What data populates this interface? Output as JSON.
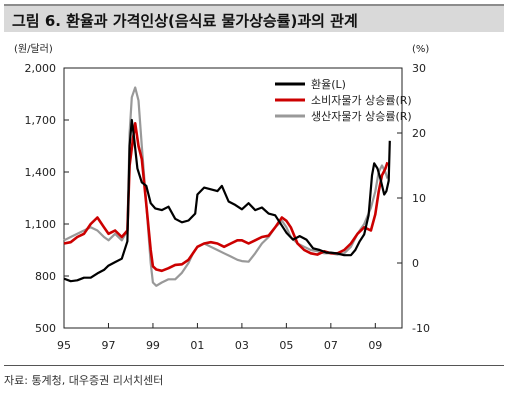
{
  "header": {
    "title": "그림 6. 환율과 가격인상(음식료 물가상승률)과의 관계"
  },
  "footer": {
    "source": "자료: 통계청, 대우증권 리서치센터"
  },
  "chart_data": {
    "type": "line",
    "title": "그림 6. 환율과 가격인상(음식료 물가상승률)과의 관계",
    "y_left_unit": "(원/달러)",
    "y_right_unit": "(%)",
    "ylim_left": [
      500,
      2000
    ],
    "ylim_right": [
      -10,
      30
    ],
    "xlim": [
      1995,
      2010.2
    ],
    "x_ticks": [
      {
        "value": 1995,
        "label": "95"
      },
      {
        "value": 1997,
        "label": "97"
      },
      {
        "value": 1999,
        "label": "99"
      },
      {
        "value": 2001,
        "label": "01"
      },
      {
        "value": 2003,
        "label": "03"
      },
      {
        "value": 2005,
        "label": "05"
      },
      {
        "value": 2007,
        "label": "07"
      },
      {
        "value": 2009,
        "label": "09"
      }
    ],
    "y_left_ticks": [
      "500",
      "800",
      "1,100",
      "1,400",
      "1,700",
      "2,000"
    ],
    "y_left_tick_values": [
      500,
      800,
      1100,
      1400,
      1700,
      2000
    ],
    "y_right_ticks": [
      "-10",
      "0",
      "10",
      "20",
      "30"
    ],
    "y_right_tick_values": [
      -10,
      0,
      10,
      20,
      30
    ],
    "legend_position": "top-right",
    "series": [
      {
        "name": "환율(L)",
        "axis": "left",
        "color": "#000000",
        "points": [
          [
            1995.0,
            785
          ],
          [
            1995.3,
            770
          ],
          [
            1995.6,
            775
          ],
          [
            1995.9,
            790
          ],
          [
            1996.2,
            790
          ],
          [
            1996.5,
            815
          ],
          [
            1996.8,
            835
          ],
          [
            1997.0,
            860
          ],
          [
            1997.3,
            880
          ],
          [
            1997.6,
            900
          ],
          [
            1997.85,
            1000
          ],
          [
            1997.95,
            1550
          ],
          [
            1998.05,
            1700
          ],
          [
            1998.15,
            1600
          ],
          [
            1998.3,
            1420
          ],
          [
            1998.5,
            1340
          ],
          [
            1998.7,
            1320
          ],
          [
            1998.9,
            1220
          ],
          [
            1999.1,
            1190
          ],
          [
            1999.4,
            1180
          ],
          [
            1999.7,
            1200
          ],
          [
            2000.0,
            1130
          ],
          [
            2000.3,
            1110
          ],
          [
            2000.6,
            1120
          ],
          [
            2000.9,
            1160
          ],
          [
            2001.0,
            1270
          ],
          [
            2001.3,
            1310
          ],
          [
            2001.6,
            1300
          ],
          [
            2001.9,
            1290
          ],
          [
            2002.1,
            1320
          ],
          [
            2002.4,
            1230
          ],
          [
            2002.7,
            1210
          ],
          [
            2003.0,
            1185
          ],
          [
            2003.3,
            1220
          ],
          [
            2003.6,
            1180
          ],
          [
            2003.9,
            1195
          ],
          [
            2004.2,
            1160
          ],
          [
            2004.5,
            1150
          ],
          [
            2004.8,
            1090
          ],
          [
            2005.0,
            1050
          ],
          [
            2005.3,
            1010
          ],
          [
            2005.6,
            1030
          ],
          [
            2005.9,
            1010
          ],
          [
            2006.2,
            960
          ],
          [
            2006.5,
            950
          ],
          [
            2006.8,
            935
          ],
          [
            2007.0,
            935
          ],
          [
            2007.3,
            930
          ],
          [
            2007.6,
            920
          ],
          [
            2007.9,
            920
          ],
          [
            2008.1,
            950
          ],
          [
            2008.3,
            1000
          ],
          [
            2008.5,
            1040
          ],
          [
            2008.7,
            1150
          ],
          [
            2008.85,
            1380
          ],
          [
            2008.95,
            1450
          ],
          [
            2009.1,
            1420
          ],
          [
            2009.25,
            1350
          ],
          [
            2009.4,
            1270
          ],
          [
            2009.5,
            1290
          ],
          [
            2009.6,
            1350
          ],
          [
            2009.65,
            1580
          ]
        ]
      },
      {
        "name": "소비자물가 상승률(R)",
        "axis": "right",
        "color": "#cc0000",
        "points": [
          [
            1995.0,
            3.0
          ],
          [
            1995.3,
            3.2
          ],
          [
            1995.6,
            4.0
          ],
          [
            1995.9,
            4.5
          ],
          [
            1996.2,
            6.0
          ],
          [
            1996.5,
            7.0
          ],
          [
            1996.8,
            5.5
          ],
          [
            1997.0,
            4.5
          ],
          [
            1997.3,
            5.0
          ],
          [
            1997.6,
            4.0
          ],
          [
            1997.85,
            5.0
          ],
          [
            1997.95,
            15.0
          ],
          [
            1998.1,
            19.0
          ],
          [
            1998.2,
            21.5
          ],
          [
            1998.35,
            18.0
          ],
          [
            1998.5,
            16.0
          ],
          [
            1998.7,
            9.0
          ],
          [
            1998.9,
            2.0
          ],
          [
            1999.0,
            -0.5
          ],
          [
            1999.15,
            -1.0
          ],
          [
            1999.4,
            -1.2
          ],
          [
            1999.7,
            -0.8
          ],
          [
            2000.0,
            -0.3
          ],
          [
            2000.3,
            -0.2
          ],
          [
            2000.6,
            0.5
          ],
          [
            2000.8,
            1.5
          ],
          [
            2001.0,
            2.5
          ],
          [
            2001.3,
            3.0
          ],
          [
            2001.6,
            3.2
          ],
          [
            2001.9,
            3.0
          ],
          [
            2002.2,
            2.5
          ],
          [
            2002.5,
            3.0
          ],
          [
            2002.8,
            3.5
          ],
          [
            2003.0,
            3.5
          ],
          [
            2003.3,
            3.0
          ],
          [
            2003.6,
            3.5
          ],
          [
            2003.9,
            4.0
          ],
          [
            2004.2,
            4.2
          ],
          [
            2004.5,
            5.5
          ],
          [
            2004.8,
            7.0
          ],
          [
            2005.0,
            6.5
          ],
          [
            2005.2,
            5.5
          ],
          [
            2005.5,
            3.0
          ],
          [
            2005.8,
            2.0
          ],
          [
            2006.1,
            1.5
          ],
          [
            2006.4,
            1.3
          ],
          [
            2006.7,
            1.8
          ],
          [
            2007.0,
            1.5
          ],
          [
            2007.3,
            1.5
          ],
          [
            2007.6,
            2.0
          ],
          [
            2007.9,
            3.0
          ],
          [
            2008.2,
            4.5
          ],
          [
            2008.5,
            5.5
          ],
          [
            2008.8,
            5.0
          ],
          [
            2009.0,
            7.5
          ],
          [
            2009.15,
            11.0
          ],
          [
            2009.3,
            13.5
          ],
          [
            2009.45,
            14.5
          ],
          [
            2009.55,
            15.5
          ]
        ]
      },
      {
        "name": "생산자물가 상승률(R)",
        "axis": "right",
        "color": "#999999",
        "points": [
          [
            1995.0,
            3.5
          ],
          [
            1995.3,
            4.0
          ],
          [
            1995.6,
            4.5
          ],
          [
            1995.9,
            5.0
          ],
          [
            1996.2,
            5.5
          ],
          [
            1996.5,
            5.0
          ],
          [
            1996.8,
            4.0
          ],
          [
            1997.0,
            3.5
          ],
          [
            1997.3,
            4.5
          ],
          [
            1997.6,
            3.5
          ],
          [
            1997.85,
            5.0
          ],
          [
            1997.95,
            20.0
          ],
          [
            1998.05,
            25.5
          ],
          [
            1998.2,
            27.0
          ],
          [
            1998.35,
            25.0
          ],
          [
            1998.5,
            18.0
          ],
          [
            1998.7,
            9.0
          ],
          [
            1998.9,
            0.0
          ],
          [
            1999.0,
            -3.0
          ],
          [
            1999.15,
            -3.5
          ],
          [
            1999.4,
            -3.0
          ],
          [
            1999.7,
            -2.5
          ],
          [
            2000.0,
            -2.5
          ],
          [
            2000.3,
            -1.5
          ],
          [
            2000.6,
            0.0
          ],
          [
            2000.8,
            1.5
          ],
          [
            2001.0,
            2.5
          ],
          [
            2001.3,
            3.0
          ],
          [
            2001.6,
            2.5
          ],
          [
            2001.9,
            2.0
          ],
          [
            2002.2,
            1.5
          ],
          [
            2002.5,
            1.0
          ],
          [
            2002.8,
            0.5
          ],
          [
            2003.0,
            0.3
          ],
          [
            2003.3,
            0.2
          ],
          [
            2003.6,
            1.5
          ],
          [
            2003.9,
            3.0
          ],
          [
            2004.2,
            4.0
          ],
          [
            2004.5,
            5.5
          ],
          [
            2004.8,
            6.5
          ],
          [
            2005.0,
            5.5
          ],
          [
            2005.2,
            4.0
          ],
          [
            2005.5,
            3.0
          ],
          [
            2005.8,
            2.5
          ],
          [
            2006.1,
            2.0
          ],
          [
            2006.4,
            1.8
          ],
          [
            2006.7,
            1.5
          ],
          [
            2007.0,
            1.5
          ],
          [
            2007.3,
            1.3
          ],
          [
            2007.6,
            1.5
          ],
          [
            2007.9,
            2.5
          ],
          [
            2008.2,
            4.5
          ],
          [
            2008.5,
            6.0
          ],
          [
            2008.8,
            8.5
          ],
          [
            2009.0,
            11.0
          ],
          [
            2009.15,
            14.0
          ],
          [
            2009.3,
            15.0
          ],
          [
            2009.45,
            14.0
          ],
          [
            2009.55,
            13.0
          ]
        ]
      }
    ]
  }
}
